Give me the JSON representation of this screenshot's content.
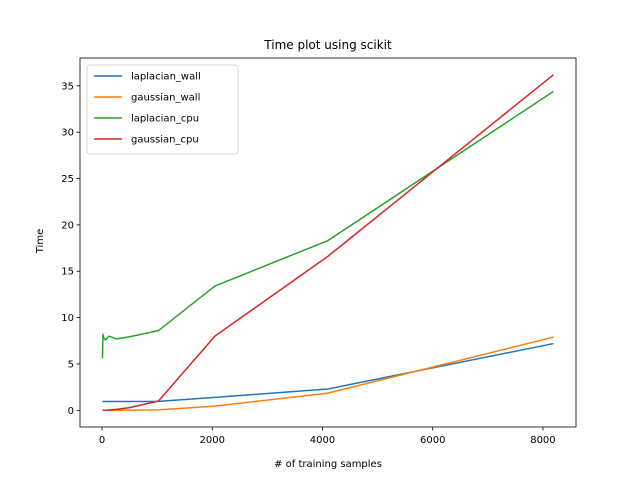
{
  "chart_data": {
    "type": "line",
    "title": "Time plot using scikit",
    "xlabel": "# of training samples",
    "ylabel": "Time",
    "xlim": [
      -400,
      8600
    ],
    "ylim": [
      -1.8,
      38.0
    ],
    "xticks": [
      0,
      2000,
      4000,
      6000,
      8000
    ],
    "yticks": [
      0,
      5,
      10,
      15,
      20,
      25,
      30,
      35
    ],
    "grid": false,
    "legend_position": "top-left",
    "series": [
      {
        "name": "laplacian_wall",
        "color": "#1f77b4",
        "x": [
          8,
          16,
          32,
          64,
          128,
          256,
          512,
          1024,
          2048,
          4096,
          8192
        ],
        "y": [
          0.95,
          0.95,
          0.95,
          0.95,
          0.95,
          0.95,
          0.95,
          0.97,
          1.4,
          2.3,
          7.2
        ]
      },
      {
        "name": "gaussian_wall",
        "color": "#ff7f0e",
        "x": [
          8,
          16,
          32,
          64,
          128,
          256,
          512,
          1024,
          2048,
          4096,
          8192
        ],
        "y": [
          0.0,
          0.0,
          0.0,
          0.0,
          0.0,
          0.0,
          0.02,
          0.05,
          0.45,
          1.85,
          7.9
        ]
      },
      {
        "name": "laplacian_cpu",
        "color": "#2ca02c",
        "x": [
          8,
          16,
          32,
          64,
          128,
          256,
          512,
          1024,
          2048,
          4096,
          8192
        ],
        "y": [
          5.6,
          8.2,
          7.8,
          7.6,
          8.0,
          7.7,
          7.95,
          8.6,
          13.4,
          18.3,
          34.4
        ]
      },
      {
        "name": "gaussian_cpu",
        "color": "#d62728",
        "x": [
          8,
          16,
          32,
          64,
          128,
          256,
          512,
          1024,
          2048,
          4096,
          8192
        ],
        "y": [
          0.0,
          0.0,
          0.0,
          0.0,
          0.05,
          0.1,
          0.3,
          1.0,
          8.0,
          16.6,
          36.2
        ]
      }
    ]
  }
}
